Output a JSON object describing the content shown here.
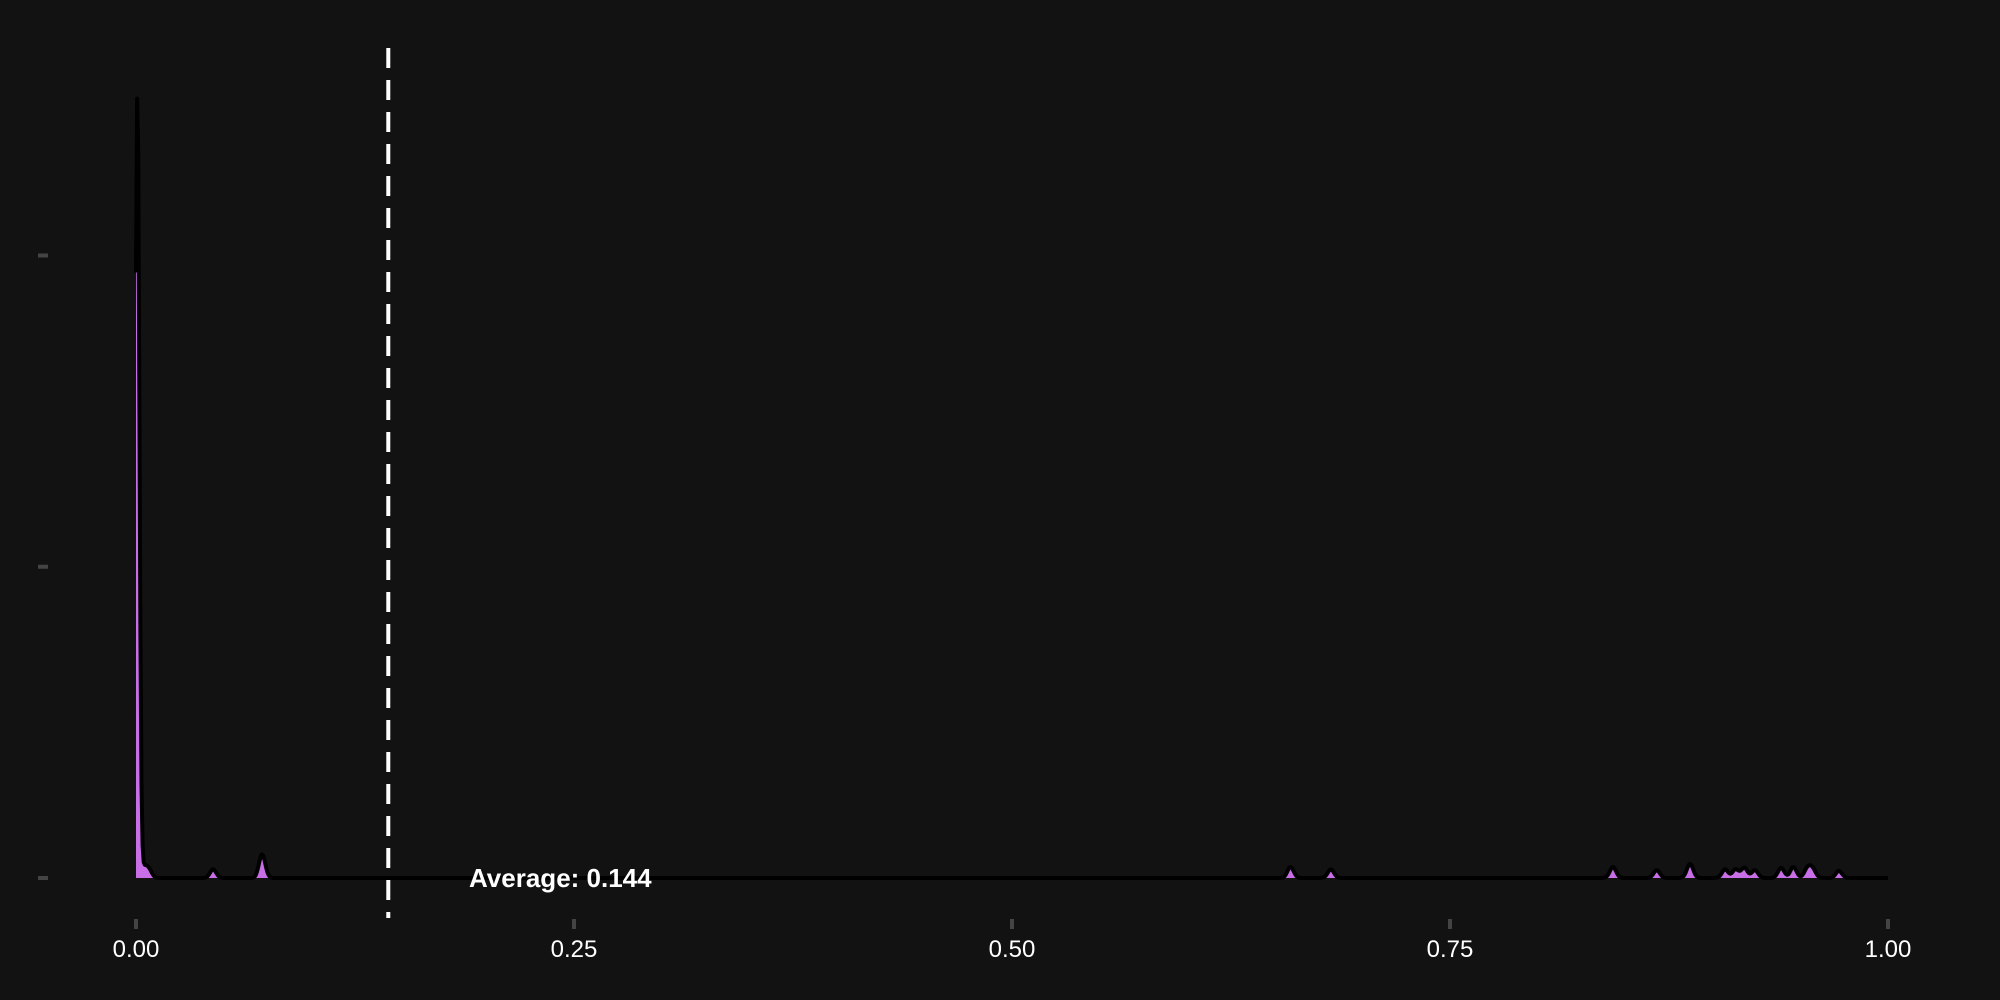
{
  "chart_data": {
    "type": "area",
    "title": "",
    "xlabel": "",
    "ylabel": "",
    "xlim": [
      0,
      1
    ],
    "ylim": [
      0,
      1
    ],
    "x_ticks": [
      {
        "value": 0.0,
        "label": "0.00"
      },
      {
        "value": 0.25,
        "label": "0.25"
      },
      {
        "value": 0.5,
        "label": "0.50"
      },
      {
        "value": 0.75,
        "label": "0.75"
      },
      {
        "value": 1.0,
        "label": "1.00"
      }
    ],
    "y_ticks": [
      0,
      0.395,
      0.79
    ],
    "grid": false,
    "legend": "none",
    "fill_color": "#c86ee6",
    "line_color": "#000000",
    "background_color": "#121212",
    "average": {
      "value": 0.144,
      "label": "Average: 0.144",
      "line_color": "#ffffff",
      "style": "dashed"
    },
    "peaks": [
      {
        "x": 0.0008,
        "height": 1.0
      },
      {
        "x": 0.0042,
        "height": 0.012
      },
      {
        "x": 0.0072,
        "height": 0.011
      },
      {
        "x": 0.044,
        "height": 0.011
      },
      {
        "x": 0.072,
        "height": 0.03
      },
      {
        "x": 0.659,
        "height": 0.014
      },
      {
        "x": 0.682,
        "height": 0.011
      },
      {
        "x": 0.843,
        "height": 0.014
      },
      {
        "x": 0.868,
        "height": 0.01
      },
      {
        "x": 0.887,
        "height": 0.018
      },
      {
        "x": 0.907,
        "height": 0.011
      },
      {
        "x": 0.913,
        "height": 0.011
      },
      {
        "x": 0.918,
        "height": 0.013
      },
      {
        "x": 0.924,
        "height": 0.01
      },
      {
        "x": 0.939,
        "height": 0.013
      },
      {
        "x": 0.946,
        "height": 0.014
      },
      {
        "x": 0.954,
        "height": 0.012
      },
      {
        "x": 0.957,
        "height": 0.011
      },
      {
        "x": 0.972,
        "height": 0.009
      }
    ]
  }
}
